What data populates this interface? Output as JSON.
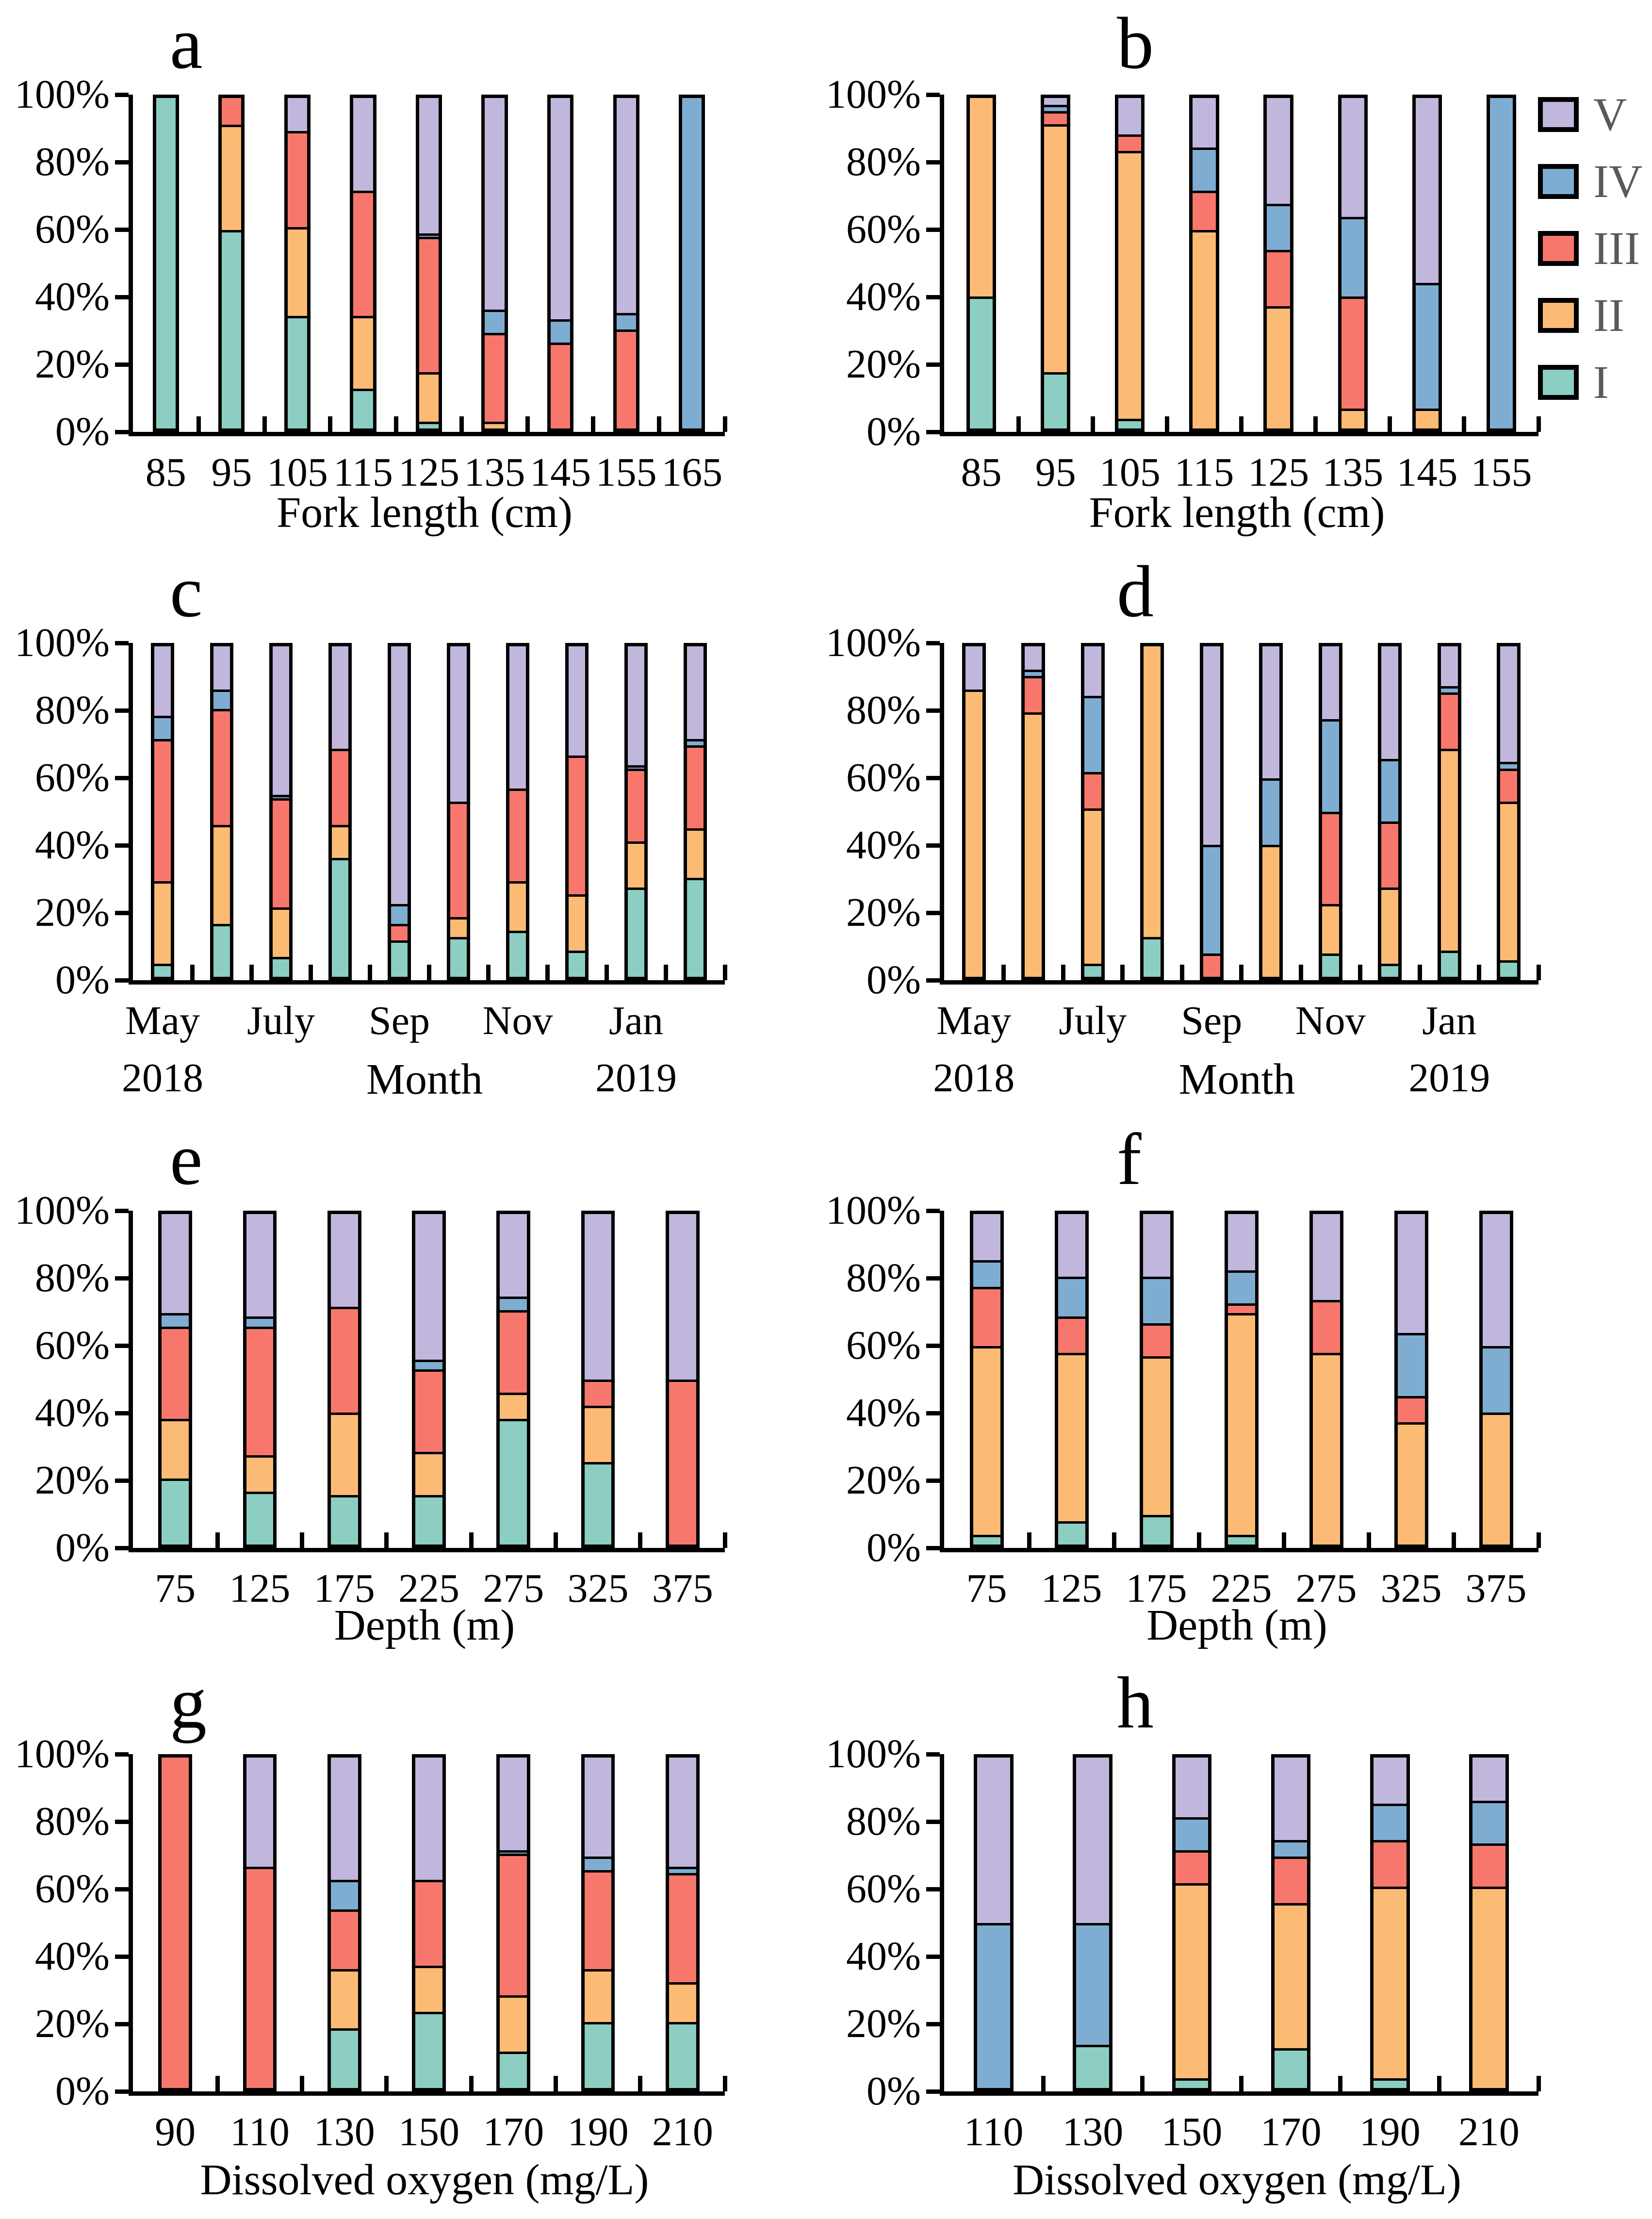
{
  "series": {
    "order": [
      "I",
      "II",
      "III",
      "IV",
      "V"
    ],
    "colors": {
      "I": "#8CCEC1",
      "II": "#FCBB74",
      "III": "#F8776C",
      "IV": "#7FADD2",
      "V": "#C1B7DC"
    },
    "legend": [
      "V",
      "IV",
      "III",
      "II",
      "I"
    ],
    "legend_text_color": "#595959"
  },
  "y_axis": {
    "ticks": [
      "0%",
      "20%",
      "40%",
      "60%",
      "80%",
      "100%"
    ],
    "ylim": [
      0,
      100
    ],
    "grid": false
  },
  "chart_data": [
    {
      "type": "bar",
      "stacked": true,
      "letter": "a",
      "xlabel": "Fork length (cm)",
      "ylabel": "",
      "categories": [
        "85",
        "95",
        "105",
        "115",
        "125",
        "135",
        "145",
        "155",
        "165"
      ],
      "bars": [
        [
          100,
          0,
          0,
          0,
          0
        ],
        [
          60,
          32,
          8,
          0,
          0
        ],
        [
          34,
          27,
          29,
          0,
          10
        ],
        [
          12,
          22,
          38,
          0,
          28
        ],
        [
          2,
          15,
          41,
          1,
          41
        ],
        [
          0,
          2,
          27,
          7,
          64
        ],
        [
          0,
          0,
          26,
          7,
          67
        ],
        [
          0,
          0,
          30,
          5,
          65
        ],
        [
          0,
          0,
          0,
          100,
          0
        ]
      ]
    },
    {
      "type": "bar",
      "stacked": true,
      "letter": "b",
      "xlabel": "Fork length (cm)",
      "ylabel": "",
      "has_legend": true,
      "categories": [
        "85",
        "95",
        "105",
        "115",
        "125",
        "135",
        "145",
        "155"
      ],
      "bars": [
        [
          40,
          60,
          0,
          0,
          0
        ],
        [
          17,
          75,
          4,
          2,
          2
        ],
        [
          3,
          81,
          5,
          0,
          11
        ],
        [
          0,
          60,
          12,
          13,
          15
        ],
        [
          0,
          37,
          17,
          14,
          32
        ],
        [
          0,
          6,
          34,
          24,
          36
        ],
        [
          0,
          6,
          0,
          38,
          56
        ],
        [
          0,
          0,
          0,
          100,
          0
        ]
      ]
    },
    {
      "type": "bar",
      "stacked": true,
      "letter": "c",
      "xlabel": "Month",
      "ylabel": "",
      "categories": [
        "May",
        "",
        "July",
        "",
        "Sep",
        "",
        "Nov",
        "",
        "Jan",
        ""
      ],
      "sub": [
        {
          "index": 0,
          "label": "2018"
        },
        {
          "index": 8,
          "label": "2019"
        }
      ],
      "bars": [
        [
          4,
          25,
          43,
          7,
          21
        ],
        [
          16,
          30,
          35,
          6,
          13
        ],
        [
          6,
          15,
          33,
          1,
          45
        ],
        [
          36,
          10,
          23,
          0,
          31
        ],
        [
          11,
          0,
          5,
          6,
          78
        ],
        [
          12,
          6,
          35,
          0,
          47
        ],
        [
          14,
          15,
          28,
          0,
          43
        ],
        [
          8,
          17,
          42,
          0,
          33
        ],
        [
          27,
          14,
          22,
          1,
          36
        ],
        [
          30,
          15,
          25,
          2,
          28
        ]
      ]
    },
    {
      "type": "bar",
      "stacked": true,
      "letter": "d",
      "xlabel": "Month",
      "ylabel": "",
      "categories": [
        "May",
        "",
        "July",
        "",
        "Sep",
        "",
        "Nov",
        "",
        "Jan",
        ""
      ],
      "sub": [
        {
          "index": 0,
          "label": "2018"
        },
        {
          "index": 8,
          "label": "2019"
        }
      ],
      "bars": [
        [
          0,
          87,
          0,
          0,
          13
        ],
        [
          0,
          80,
          11,
          2,
          7
        ],
        [
          4,
          47,
          11,
          23,
          15
        ],
        [
          12,
          88,
          0,
          0,
          0
        ],
        [
          0,
          0,
          7,
          33,
          60
        ],
        [
          0,
          40,
          0,
          20,
          40
        ],
        [
          7,
          15,
          28,
          28,
          22
        ],
        [
          4,
          23,
          20,
          19,
          34
        ],
        [
          8,
          61,
          17,
          2,
          12
        ],
        [
          5,
          48,
          10,
          2,
          35
        ]
      ]
    },
    {
      "type": "bar",
      "stacked": true,
      "letter": "e",
      "xlabel": "Depth (m)",
      "ylabel": "",
      "categories": [
        "75",
        "125",
        "175",
        "225",
        "275",
        "325",
        "375"
      ],
      "bars": [
        [
          20,
          18,
          28,
          4,
          30
        ],
        [
          16,
          11,
          39,
          3,
          31
        ],
        [
          15,
          25,
          32,
          0,
          28
        ],
        [
          15,
          13,
          25,
          3,
          44
        ],
        [
          38,
          8,
          25,
          4,
          25
        ],
        [
          25,
          17,
          8,
          0,
          50
        ],
        [
          0,
          0,
          50,
          0,
          50
        ]
      ]
    },
    {
      "type": "bar",
      "stacked": true,
      "letter": "f",
      "xlabel": "Depth (m)",
      "ylabel": "",
      "categories": [
        "75",
        "125",
        "175",
        "225",
        "275",
        "325",
        "375"
      ],
      "bars": [
        [
          3,
          57,
          18,
          8,
          14
        ],
        [
          7,
          51,
          11,
          12,
          19
        ],
        [
          9,
          48,
          10,
          14,
          19
        ],
        [
          3,
          67,
          3,
          10,
          17
        ],
        [
          0,
          58,
          16,
          0,
          26
        ],
        [
          0,
          37,
          8,
          19,
          36
        ],
        [
          0,
          40,
          0,
          20,
          40
        ]
      ]
    },
    {
      "type": "bar",
      "stacked": true,
      "letter": "g",
      "xlabel": "Dissolved oxygen (mg/L)",
      "ylabel": "",
      "categories": [
        "90",
        "110",
        "130",
        "150",
        "170",
        "190",
        "210"
      ],
      "bars": [
        [
          0,
          0,
          100,
          0,
          0
        ],
        [
          0,
          0,
          67,
          0,
          33
        ],
        [
          18,
          18,
          18,
          9,
          37
        ],
        [
          23,
          14,
          26,
          0,
          37
        ],
        [
          11,
          17,
          43,
          1,
          28
        ],
        [
          20,
          16,
          30,
          4,
          30
        ],
        [
          20,
          12,
          33,
          2,
          33
        ]
      ]
    },
    {
      "type": "bar",
      "stacked": true,
      "letter": "h",
      "xlabel": "Dissolved oxygen  (mg/L)",
      "ylabel": "",
      "categories": [
        "110",
        "130",
        "150",
        "170",
        "190",
        "210"
      ],
      "bars": [
        [
          0,
          0,
          0,
          50,
          50
        ],
        [
          13,
          0,
          0,
          37,
          50
        ],
        [
          3,
          59,
          10,
          10,
          18
        ],
        [
          12,
          44,
          14,
          5,
          25
        ],
        [
          3,
          58,
          14,
          11,
          14
        ],
        [
          0,
          61,
          13,
          13,
          13
        ]
      ]
    }
  ]
}
